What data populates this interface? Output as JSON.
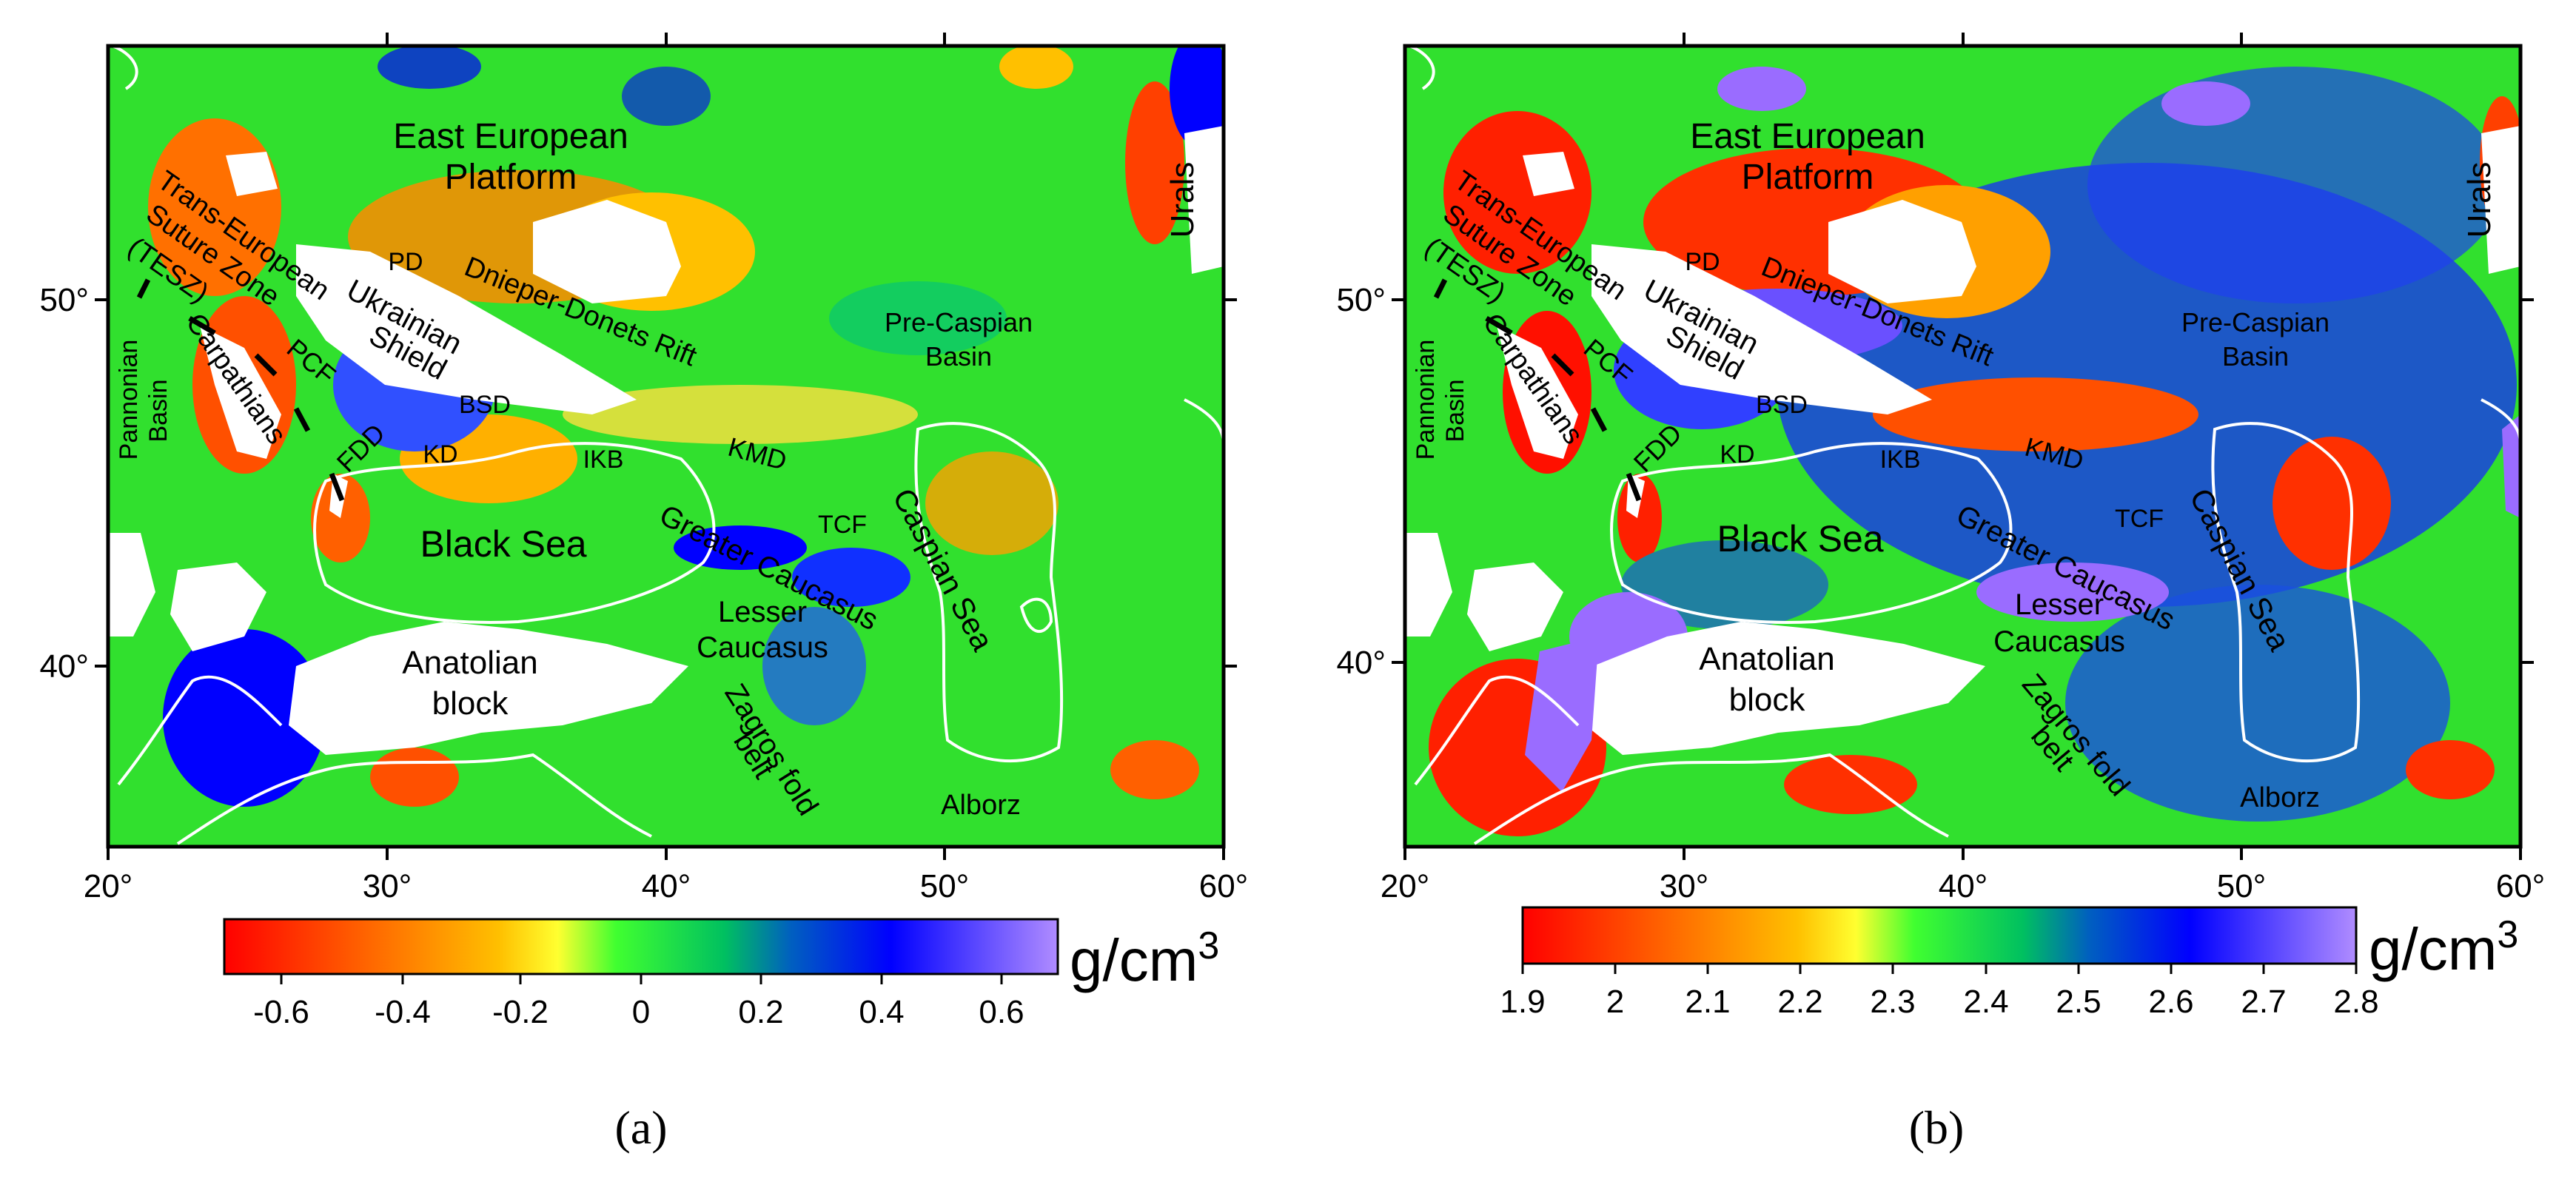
{
  "colors": {
    "background": "#31e02e",
    "water_outline": "#ffffff",
    "scale": [
      "#ff0000",
      "#ff5a00",
      "#ffa500",
      "#ffff00",
      "#30ff30",
      "#00c060",
      "#0000ff",
      "#9a5cff"
    ],
    "mask": "#ffffff",
    "text": "#000000"
  },
  "panels": [
    {
      "id": "a",
      "caption": "(a)",
      "x_ticks": [
        "20°",
        "30°",
        "40°",
        "50°",
        "60°"
      ],
      "y_ticks": [
        "50°",
        "40°"
      ],
      "colorbar_ticks": [
        "-0.6",
        "-0.4",
        "-0.2",
        "0",
        "0.2",
        "0.4",
        "0.6"
      ],
      "unit": "g/cm",
      "unit_sup": "3",
      "labels": {
        "east_european": "East European",
        "platform": "Platform",
        "urals": "Urals",
        "trans_european": "Trans-European",
        "suture_zone": "Suture Zone",
        "tesz": "(TESZ)",
        "pd": "PD",
        "dnieper": "Dnieper-Donets Rift",
        "ukrainian": "Ukrainian",
        "shield": "Shield",
        "pre_caspian": "Pre-Caspian",
        "basin": "Basin",
        "pannonian": "Pannonian",
        "pannonian_basin": "Basin",
        "carpathians": "Carpathians",
        "pcf": "PCF",
        "bsd": "BSD",
        "kd": "KD",
        "fdd": "FDD",
        "ikb": "IKB",
        "kmd": "KMD",
        "black_sea": "Black Sea",
        "greater_caucasus": "Greater Caucasus",
        "tcf": "TCF",
        "caspian_sea": "Caspian Sea",
        "lesser": "Lesser",
        "caucasus": "Caucasus",
        "anatolian": "Anatolian",
        "block": "block",
        "zagros": "Zagros fold",
        "belt": "belt",
        "alborz": "Alborz"
      }
    },
    {
      "id": "b",
      "caption": "(b)",
      "x_ticks": [
        "20°",
        "30°",
        "40°",
        "50°",
        "60°"
      ],
      "y_ticks": [
        "50°",
        "40°"
      ],
      "colorbar_ticks": [
        "1.9",
        "2",
        "2.1",
        "2.2",
        "2.3",
        "2.4",
        "2.5",
        "2.6",
        "2.7",
        "2.8"
      ],
      "unit": "g/cm",
      "unit_sup": "3",
      "labels": {
        "east_european": "East European",
        "platform": "Platform",
        "urals": "Urals",
        "trans_european": "Trans-European",
        "suture_zone": "Suture Zone",
        "tesz": "(TESZ)",
        "pd": "PD",
        "dnieper": "Dnieper-Donets Rift",
        "ukrainian": "Ukrainian",
        "shield": "Shield",
        "pre_caspian": "Pre-Caspian",
        "basin": "Basin",
        "pannonian": "Pannonian",
        "pannonian_basin": "Basin",
        "carpathians": "Carpathians",
        "pcf": "PCF",
        "bsd": "BSD",
        "kd": "KD",
        "fdd": "FDD",
        "ikb": "IKB",
        "kmd": "KMD",
        "black_sea": "Black Sea",
        "greater_caucasus": "Greater Caucasus",
        "tcf": "TCF",
        "caspian_sea": "Caspian Sea",
        "lesser": "Lesser",
        "caucasus": "Caucasus",
        "anatolian": "Anatolian",
        "block": "block",
        "zagros": "Zagros fold",
        "belt": "belt",
        "alborz": "Alborz"
      }
    }
  ]
}
